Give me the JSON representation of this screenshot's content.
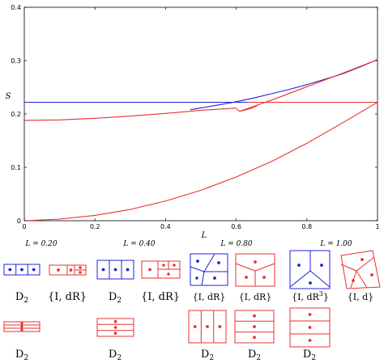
{
  "chart_data": {
    "type": "line",
    "title": "",
    "xlabel": "L",
    "ylabel": "S",
    "xlim": [
      0,
      1
    ],
    "ylim": [
      0,
      0.4
    ],
    "xticks": [
      "0",
      "0.2",
      "0.4",
      "0.6",
      "0.8",
      "1"
    ],
    "yticks": [
      "0",
      "0.1",
      "0.2",
      "0.3",
      "0.4"
    ],
    "grid": false,
    "colors": {
      "blue": "#2020e0",
      "red": "#e83030"
    },
    "series": [
      {
        "color": "blue",
        "x": [
          0,
          0.2,
          0.4,
          0.6,
          1.0
        ],
        "y": [
          0.222,
          0.222,
          0.222,
          0.222,
          0.222
        ]
      },
      {
        "color": "blue",
        "x": [
          0.47,
          0.55,
          0.6,
          0.65,
          0.7,
          0.75,
          0.8,
          0.85,
          0.9,
          0.95,
          1.0
        ],
        "y": [
          0.208,
          0.217,
          0.223,
          0.23,
          0.238,
          0.246,
          0.255,
          0.265,
          0.275,
          0.288,
          0.302
        ]
      },
      {
        "color": "red",
        "x": [
          0,
          0.1,
          0.2,
          0.3,
          0.4,
          0.5,
          0.55,
          0.6
        ],
        "y": [
          0.188,
          0.189,
          0.192,
          0.196,
          0.201,
          0.207,
          0.209,
          0.211
        ]
      },
      {
        "color": "red",
        "x": [
          0.6,
          0.61
        ],
        "y": [
          0.21,
          0.205
        ]
      },
      {
        "color": "red",
        "x": [
          0.61,
          0.64,
          0.66
        ],
        "y": [
          0.205,
          0.21,
          0.216
        ]
      },
      {
        "color": "red",
        "x": [
          0.61,
          0.7,
          0.8,
          0.9,
          1.0
        ],
        "y": [
          0.205,
          0.226,
          0.251,
          0.276,
          0.302
        ]
      },
      {
        "color": "red",
        "x": [
          0.63,
          0.7,
          0.8,
          0.9,
          1.0
        ],
        "y": [
          0.222,
          0.222,
          0.222,
          0.222,
          0.222
        ]
      },
      {
        "color": "red",
        "x": [
          0,
          0.1,
          0.2,
          0.3,
          0.4,
          0.5,
          0.6,
          0.7,
          0.8,
          0.9,
          1.0
        ],
        "y": [
          0,
          0.003,
          0.01,
          0.021,
          0.037,
          0.057,
          0.082,
          0.111,
          0.145,
          0.183,
          0.222
        ]
      }
    ]
  },
  "legend_panel": {
    "col_labels": [
      "L = 0.20",
      "L = 0.40",
      "L = 0.80",
      "L = 1.00"
    ],
    "row1_labels": [
      "D",
      "{I, dR}",
      "D",
      "{I, dR}",
      "{I, dR",
      "{I, dR",
      "{I, dR",
      "{I, d"
    ],
    "row1_subs": [
      "2",
      "",
      "2",
      "",
      "",
      "",
      "",
      ""
    ],
    "row1_sups": [
      "",
      "",
      "",
      "",
      "",
      "",
      "3",
      ""
    ],
    "row1_closers": [
      "",
      "",
      "",
      "",
      "}",
      "}",
      "}",
      "}"
    ],
    "row2_labels": [
      "D",
      "D",
      "D",
      "D",
      "D"
    ],
    "row2_subs": [
      "2",
      "2",
      "2",
      "2",
      "2"
    ]
  }
}
